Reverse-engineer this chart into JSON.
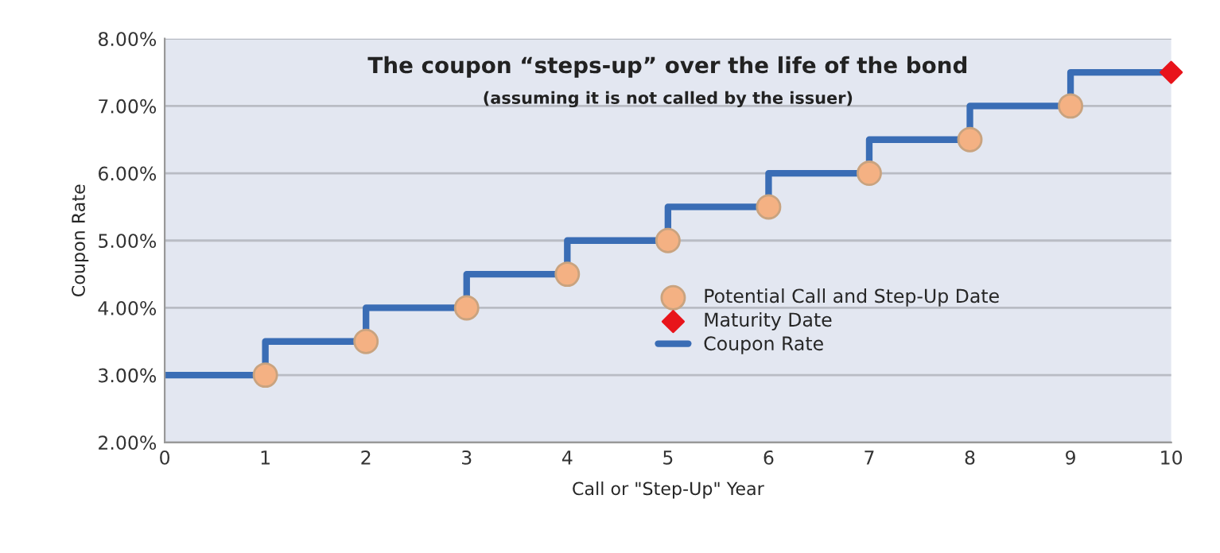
{
  "chart_data": {
    "type": "step",
    "title": "The coupon “steps-up” over the life of the bond",
    "subtitle": "(assuming it is not called by the issuer)",
    "xlabel": "Call or \"Step-Up\" Year",
    "ylabel": "Coupon Rate",
    "xlim": [
      0,
      10
    ],
    "xticks": [
      0,
      1,
      2,
      3,
      4,
      5,
      6,
      7,
      8,
      9,
      10
    ],
    "ylim": [
      2,
      8
    ],
    "yticks": [
      {
        "value": 2,
        "label": "2.00%"
      },
      {
        "value": 3,
        "label": "3.00%"
      },
      {
        "value": 4,
        "label": "4.00%"
      },
      {
        "value": 5,
        "label": "5.00%"
      },
      {
        "value": 6,
        "label": "6.00%"
      },
      {
        "value": 7,
        "label": "7.00%"
      },
      {
        "value": 8,
        "label": "8.00%"
      }
    ],
    "grid": "y",
    "legend": "center",
    "series": [
      {
        "name": "Coupon Rate",
        "color": "#3a6db5",
        "x": [
          0,
          1,
          2,
          3,
          4,
          5,
          6,
          7,
          8,
          9,
          10
        ],
        "values": [
          3,
          3.5,
          4,
          4.5,
          5,
          5.5,
          6,
          6.5,
          7,
          7.5,
          7.5
        ]
      },
      {
        "name": "Potential Call and Step-Up Date",
        "type": "scatter",
        "marker": "circle",
        "color": "#f4b183",
        "x": [
          1,
          2,
          3,
          4,
          5,
          6,
          7,
          8,
          9
        ],
        "values": [
          3,
          3.5,
          4,
          4.5,
          5,
          5.5,
          6,
          6.5,
          7
        ]
      },
      {
        "name": "Maturity Date",
        "type": "scatter",
        "marker": "diamond",
        "color": "#e8141b",
        "x": [
          10
        ],
        "values": [
          7.5
        ]
      }
    ]
  }
}
